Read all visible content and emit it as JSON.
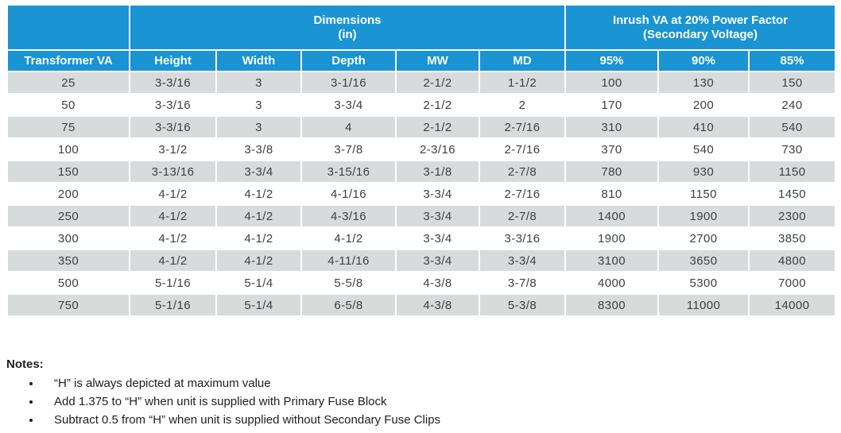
{
  "colors": {
    "header_blue": "#1a94d3",
    "stripe_gray": "#d8dbdc",
    "cell_text": "#3e4043"
  },
  "table": {
    "groups": {
      "dimensions_line1": "Dimensions",
      "dimensions_line2": "(in)",
      "inrush_line1": "Inrush VA at 20% Power Factor",
      "inrush_line2": "(Secondary Voltage)"
    },
    "columns": [
      "Transformer VA",
      "Height",
      "Width",
      "Depth",
      "MW",
      "MD",
      "95%",
      "90%",
      "85%"
    ],
    "rows": [
      [
        "25",
        "3-3/16",
        "3",
        "3-1/16",
        "2-1/2",
        "1-1/2",
        "100",
        "130",
        "150"
      ],
      [
        "50",
        "3-3/16",
        "3",
        "3-3/4",
        "2-1/2",
        "2",
        "170",
        "200",
        "240"
      ],
      [
        "75",
        "3-3/16",
        "3",
        "4",
        "2-1/2",
        "2-7/16",
        "310",
        "410",
        "540"
      ],
      [
        "100",
        "3-1/2",
        "3-3/8",
        "3-7/8",
        "2-3/16",
        "2-7/16",
        "370",
        "540",
        "730"
      ],
      [
        "150",
        "3-13/16",
        "3-3/4",
        "3-15/16",
        "3-1/8",
        "2-7/8",
        "780",
        "930",
        "1150"
      ],
      [
        "200",
        "4-1/2",
        "4-1/2",
        "4-1/16",
        "3-3/4",
        "2-7/16",
        "810",
        "1150",
        "1450"
      ],
      [
        "250",
        "4-1/2",
        "4-1/2",
        "4-3/16",
        "3-3/4",
        "2-7/8",
        "1400",
        "1900",
        "2300"
      ],
      [
        "300",
        "4-1/2",
        "4-1/2",
        "4-1/2",
        "3-3/4",
        "3-3/16",
        "1900",
        "2700",
        "3850"
      ],
      [
        "350",
        "4-1/2",
        "4-1/2",
        "4-11/16",
        "3-3/4",
        "3-3/4",
        "3100",
        "3650",
        "4800"
      ],
      [
        "500",
        "5-1/16",
        "5-1/4",
        "5-5/8",
        "4-3/8",
        "3-7/8",
        "4000",
        "5300",
        "7000"
      ],
      [
        "750",
        "5-1/16",
        "5-1/4",
        "6-5/8",
        "4-3/8",
        "5-3/8",
        "8300",
        "11000",
        "14000"
      ]
    ]
  },
  "notes": {
    "heading": "Notes:",
    "items": [
      "“H” is always depicted at maximum value",
      "Add 1.375 to “H” when unit is supplied with Primary Fuse Block",
      "Subtract 0.5 from “H” when unit is supplied without Secondary Fuse Clips"
    ]
  }
}
